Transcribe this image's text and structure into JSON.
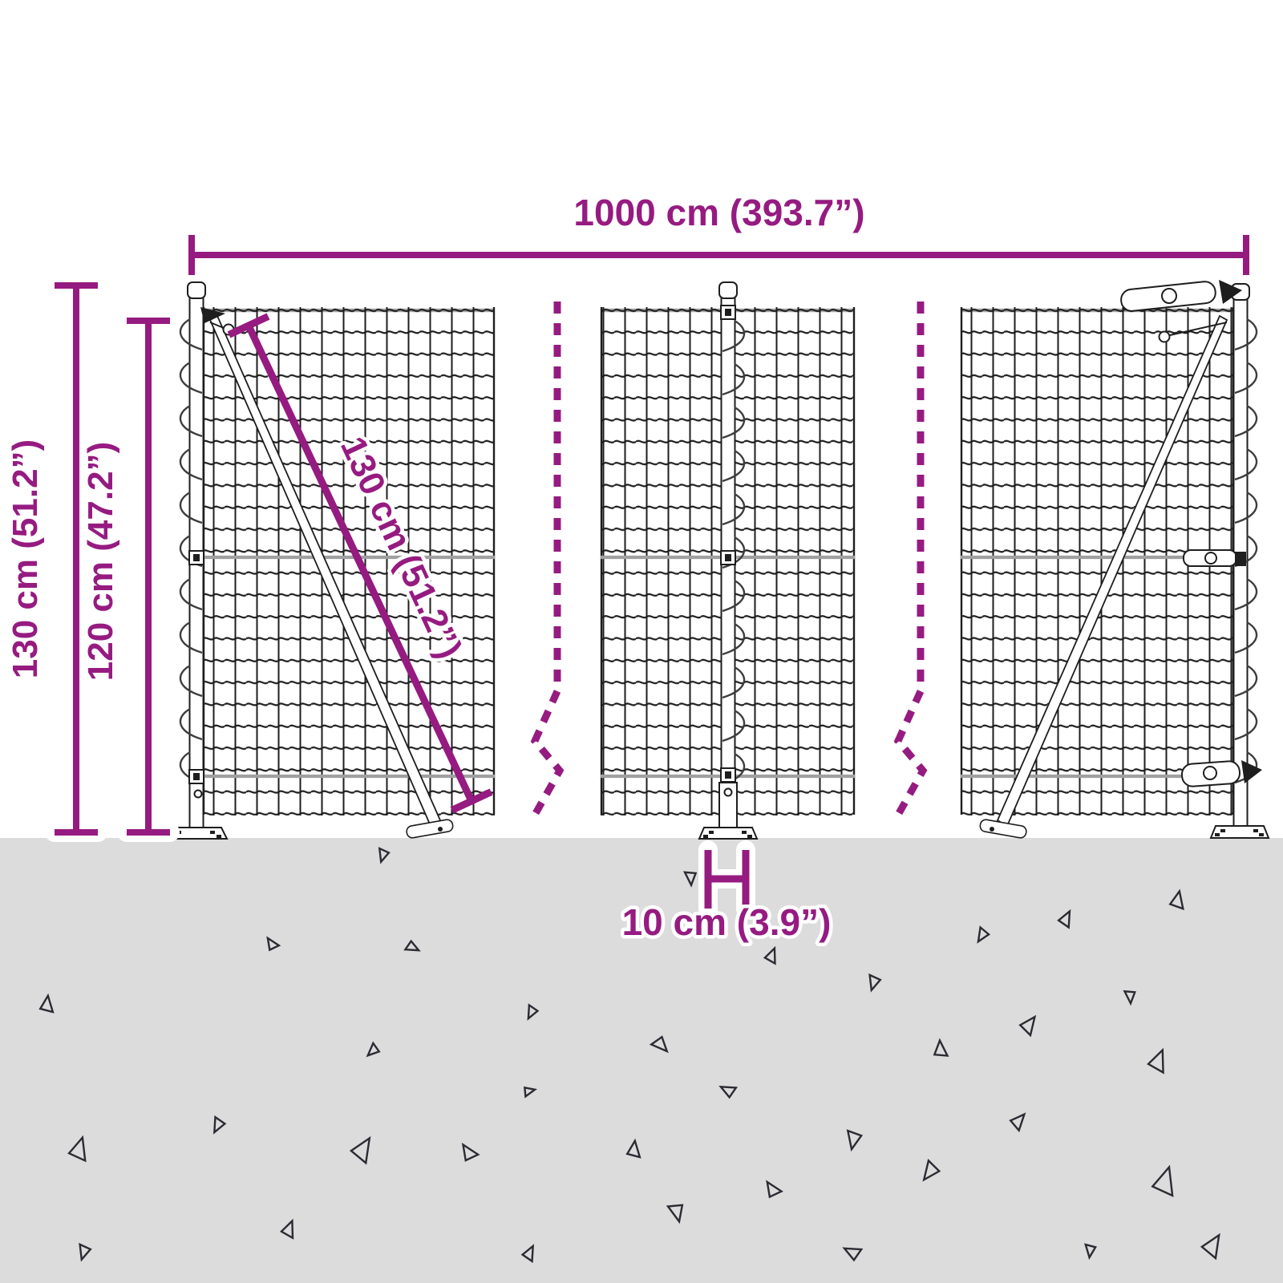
{
  "colors": {
    "accent": "#961b81",
    "ground": "#dcdcdc",
    "ink": "#1e1e1e",
    "wire": "#a0a0a0",
    "speck": "#2b2b33"
  },
  "dimensions": {
    "total_width": {
      "label": "1000 cm (393.7”)"
    },
    "post_height": {
      "label": "130 cm (51.2”)"
    },
    "mesh_height": {
      "label": "120 cm (47.2”)"
    },
    "mesh_diagonal": {
      "label": "130 cm (51.2”)"
    },
    "post_depth": {
      "label": "10 cm (3.9”)"
    }
  },
  "ground": {
    "triangles": [
      [
        478,
        1067,
        15,
        200
      ],
      [
        862,
        1095,
        16,
        180
      ],
      [
        1468,
        1122,
        20,
        15
      ],
      [
        1329,
        1145,
        18,
        30
      ],
      [
        1225,
        1167,
        16,
        215
      ],
      [
        338,
        1177,
        15,
        330
      ],
      [
        515,
        1181,
        15,
        120
      ],
      [
        962,
        1191,
        17,
        25
      ],
      [
        1090,
        1226,
        17,
        200
      ],
      [
        58,
        1252,
        19,
        10
      ],
      [
        663,
        1263,
        15,
        210
      ],
      [
        1283,
        1277,
        21,
        40
      ],
      [
        825,
        1303,
        19,
        140
      ],
      [
        1172,
        1308,
        19,
        0
      ],
      [
        465,
        1311,
        15,
        230
      ],
      [
        1444,
        1322,
        25,
        25
      ],
      [
        907,
        1360,
        17,
        300
      ],
      [
        660,
        1360,
        13,
        80
      ],
      [
        1410,
        1243,
        15,
        180
      ],
      [
        98,
        1432,
        26,
        20
      ],
      [
        272,
        1404,
        17,
        210
      ],
      [
        452,
        1432,
        28,
        35
      ],
      [
        583,
        1437,
        20,
        330
      ],
      [
        790,
        1433,
        19,
        10
      ],
      [
        1065,
        1422,
        21,
        195
      ],
      [
        1160,
        1462,
        22,
        220
      ],
      [
        1270,
        1397,
        19,
        45
      ],
      [
        1452,
        1472,
        32,
        20
      ],
      [
        845,
        1512,
        21,
        170
      ],
      [
        962,
        1483,
        19,
        330
      ],
      [
        360,
        1532,
        19,
        25
      ],
      [
        105,
        1562,
        17,
        200
      ],
      [
        660,
        1562,
        17,
        30
      ],
      [
        1062,
        1562,
        19,
        300
      ],
      [
        1512,
        1552,
        26,
        35
      ],
      [
        1360,
        1560,
        15,
        190
      ]
    ]
  }
}
